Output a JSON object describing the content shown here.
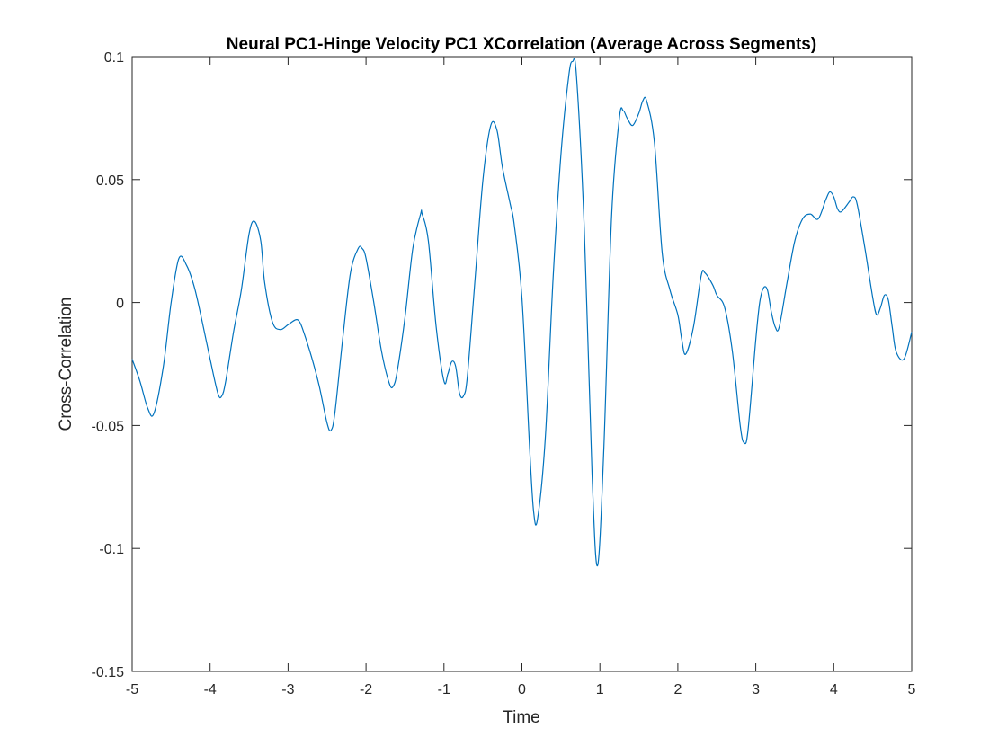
{
  "chart_data": {
    "type": "line",
    "title": "Neural PC1-Hinge Velocity PC1 XCorrelation (Average Across Segments)",
    "xlabel": "Time",
    "ylabel": "Cross-Correlation",
    "xlim": [
      -5,
      5
    ],
    "ylim": [
      -0.15,
      0.1
    ],
    "xticks": [
      -5,
      -4,
      -3,
      -2,
      -1,
      0,
      1,
      2,
      3,
      4,
      5
    ],
    "xtick_labels": [
      "-5",
      "-4",
      "-3",
      "-2",
      "-1",
      "0",
      "1",
      "2",
      "3",
      "4",
      "5"
    ],
    "yticks": [
      -0.15,
      -0.1,
      -0.05,
      0,
      0.05,
      0.1
    ],
    "ytick_labels": [
      "-0.15",
      "-0.1",
      "-0.05",
      "0",
      "0.05",
      "0.1"
    ],
    "grid": false,
    "line_color": "#0072BD",
    "series": [
      {
        "x": [
          -5.0,
          -4.9,
          -4.8,
          -4.72,
          -4.6,
          -4.5,
          -4.4,
          -4.3,
          -4.2,
          -4.1,
          -4.0,
          -3.9,
          -3.85,
          -3.8,
          -3.7,
          -3.6,
          -3.5,
          -3.43,
          -3.35,
          -3.3,
          -3.2,
          -3.1,
          -3.0,
          -2.9,
          -2.85,
          -2.8,
          -2.7,
          -2.6,
          -2.5,
          -2.45,
          -2.4,
          -2.3,
          -2.2,
          -2.1,
          -2.05,
          -2.0,
          -1.9,
          -1.8,
          -1.7,
          -1.65,
          -1.6,
          -1.5,
          -1.4,
          -1.3,
          -1.28,
          -1.2,
          -1.1,
          -1.0,
          -0.95,
          -0.9,
          -0.85,
          -0.8,
          -0.75,
          -0.7,
          -0.6,
          -0.5,
          -0.4,
          -0.32,
          -0.25,
          -0.15,
          -0.1,
          0.0,
          0.1,
          0.15,
          0.2,
          0.3,
          0.4,
          0.5,
          0.6,
          0.65,
          0.7,
          0.8,
          0.9,
          0.97,
          1.05,
          1.15,
          1.25,
          1.3,
          1.35,
          1.42,
          1.5,
          1.55,
          1.6,
          1.7,
          1.8,
          1.9,
          2.0,
          2.05,
          2.1,
          2.2,
          2.3,
          2.35,
          2.45,
          2.5,
          2.6,
          2.7,
          2.8,
          2.85,
          2.9,
          3.0,
          3.05,
          3.1,
          3.15,
          3.2,
          3.25,
          3.3,
          3.4,
          3.5,
          3.6,
          3.7,
          3.8,
          3.9,
          3.95,
          4.0,
          4.05,
          4.1,
          4.2,
          4.25,
          4.3,
          4.4,
          4.5,
          4.55,
          4.6,
          4.65,
          4.7,
          4.75,
          4.8,
          4.9,
          5.0
        ],
        "y": [
          -0.023,
          -0.032,
          -0.043,
          -0.045,
          -0.026,
          0.0,
          0.018,
          0.015,
          0.006,
          -0.008,
          -0.023,
          -0.037,
          -0.038,
          -0.032,
          -0.012,
          0.005,
          0.028,
          0.033,
          0.025,
          0.008,
          -0.008,
          -0.011,
          -0.009,
          -0.007,
          -0.008,
          -0.012,
          -0.022,
          -0.034,
          -0.049,
          -0.052,
          -0.045,
          -0.015,
          0.012,
          0.022,
          0.022,
          0.018,
          0.0,
          -0.02,
          -0.033,
          -0.034,
          -0.028,
          -0.006,
          0.022,
          0.036,
          0.036,
          0.025,
          -0.01,
          -0.032,
          -0.029,
          -0.024,
          -0.026,
          -0.037,
          -0.038,
          -0.03,
          0.01,
          0.05,
          0.072,
          0.07,
          0.055,
          0.04,
          0.032,
          0.002,
          -0.06,
          -0.085,
          -0.088,
          -0.055,
          0.01,
          0.06,
          0.092,
          0.098,
          0.092,
          0.03,
          -0.07,
          -0.107,
          -0.06,
          0.035,
          0.075,
          0.078,
          0.075,
          0.072,
          0.077,
          0.082,
          0.082,
          0.065,
          0.02,
          0.005,
          -0.005,
          -0.015,
          -0.021,
          -0.01,
          0.011,
          0.012,
          0.007,
          0.003,
          -0.002,
          -0.02,
          -0.05,
          -0.057,
          -0.052,
          -0.015,
          0.0,
          0.006,
          0.005,
          -0.004,
          -0.01,
          -0.01,
          0.008,
          0.025,
          0.034,
          0.036,
          0.034,
          0.042,
          0.045,
          0.043,
          0.038,
          0.037,
          0.041,
          0.043,
          0.04,
          0.022,
          0.002,
          -0.005,
          -0.002,
          0.003,
          0.001,
          -0.01,
          -0.02,
          -0.023,
          -0.012
        ]
      }
    ]
  }
}
